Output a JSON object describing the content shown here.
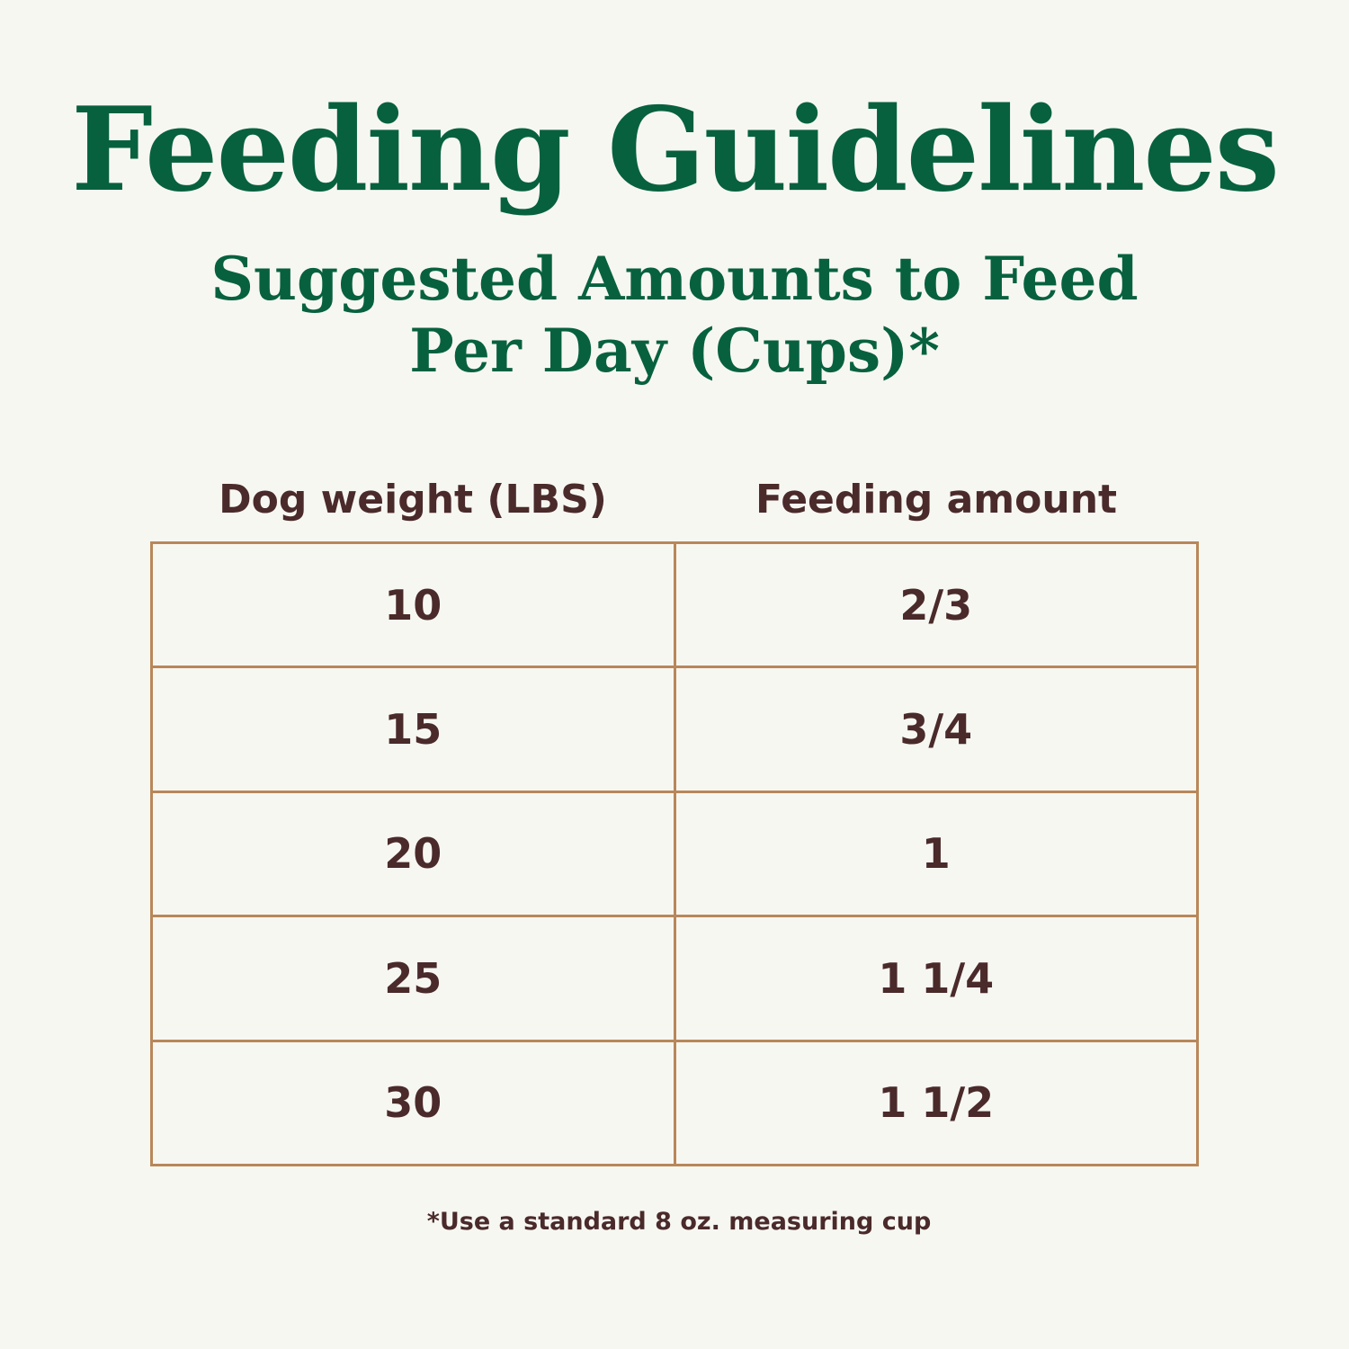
{
  "header": {
    "title": "Feeding Guidelines",
    "subtitle_lines": [
      "Suggested Amounts to Feed",
      "Per Day (Cups)*"
    ]
  },
  "table": {
    "columns": [
      "Dog weight (LBS)",
      "Feeding amount"
    ],
    "rows": [
      [
        "10",
        "2/3"
      ],
      [
        "15",
        "3/4"
      ],
      [
        "20",
        "1"
      ],
      [
        "25",
        "1 1/4"
      ],
      [
        "30",
        "1 1/2"
      ]
    ]
  },
  "footnote": "*Use a standard 8 oz. measuring cup"
}
